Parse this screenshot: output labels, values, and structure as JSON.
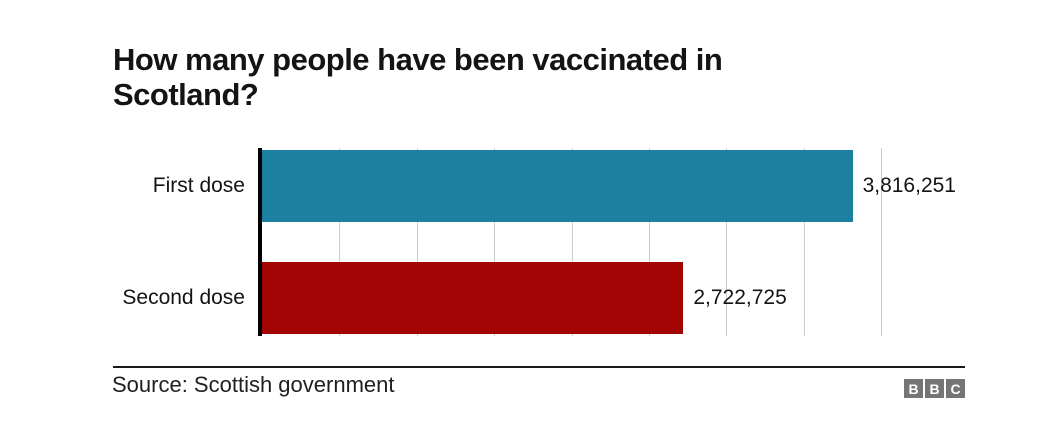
{
  "title": "How many people have been vaccinated in Scotland?",
  "chart_data": {
    "type": "bar",
    "orientation": "horizontal",
    "title": "How many people have been vaccinated in Scotland?",
    "categories": [
      "First dose",
      "Second dose"
    ],
    "values": [
      3816251,
      2722725
    ],
    "value_labels": [
      "3,816,251",
      "2,722,725"
    ],
    "colors": [
      "#1D80A1",
      "#A30505"
    ],
    "xlabel": "",
    "ylabel": "",
    "xlim": [
      0,
      4000000
    ],
    "gridline_interval": 500000,
    "grid": "on",
    "gridline_color": "#cccccc",
    "axis_color": "#000000",
    "legend": "none"
  },
  "footer": {
    "source": "Source: Scottish government",
    "logo_letters": [
      "B",
      "B",
      "C"
    ],
    "logo_color": "#757575"
  }
}
